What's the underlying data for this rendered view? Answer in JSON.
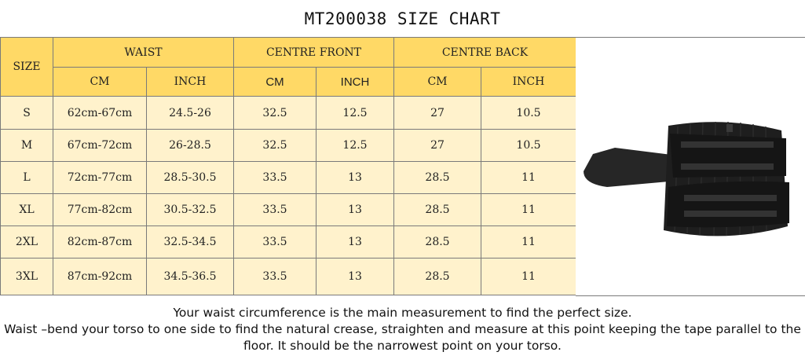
{
  "title": "MT200038 SIZE CHART",
  "headers": {
    "size": "SIZE",
    "waist": "WAIST",
    "centre_front": "CENTRE FRONT",
    "centre_back": "CENTRE BACK",
    "cm": "CM",
    "inch": "INCH"
  },
  "rows": [
    {
      "size": "S",
      "waist_cm": "62cm-67cm",
      "waist_inch": "24.5-26",
      "cf_cm": "32.5",
      "cf_inch": "12.5",
      "cb_cm": "27",
      "cb_inch": "10.5"
    },
    {
      "size": "M",
      "waist_cm": "67cm-72cm",
      "waist_inch": "26-28.5",
      "cf_cm": "32.5",
      "cf_inch": "12.5",
      "cb_cm": "27",
      "cb_inch": "10.5"
    },
    {
      "size": "L",
      "waist_cm": "72cm-77cm",
      "waist_inch": "28.5-30.5",
      "cf_cm": "33.5",
      "cf_inch": "13",
      "cb_cm": "28.5",
      "cb_inch": "11"
    },
    {
      "size": "XL",
      "waist_cm": "77cm-82cm",
      "waist_inch": "30.5-32.5",
      "cf_cm": "33.5",
      "cf_inch": "13",
      "cb_cm": "28.5",
      "cb_inch": "11"
    },
    {
      "size": "2XL",
      "waist_cm": "82cm-87cm",
      "waist_inch": "32.5-34.5",
      "cf_cm": "33.5",
      "cf_inch": "13",
      "cb_cm": "28.5",
      "cb_inch": "11"
    },
    {
      "size": "3XL",
      "waist_cm": "87cm-92cm",
      "waist_inch": "34.5-36.5",
      "cf_cm": "33.5",
      "cf_inch": "13",
      "cb_cm": "28.5",
      "cb_inch": "11"
    }
  ],
  "notes": [
    "Your waist circumference is the main measurement to find the perfect size.",
    "Waist –bend your torso to one side to find the natural crease, straighten and measure at this point keeping the tape parallel to the",
    "floor. It should be the narrowest point on your torso."
  ],
  "colors": {
    "header_bg": "#ffd966",
    "body_bg": "#fff2cc",
    "border": "#7a7a7a",
    "product": "#1e1e1e"
  },
  "product_image": "black waist trainer belt with double velcro straps"
}
